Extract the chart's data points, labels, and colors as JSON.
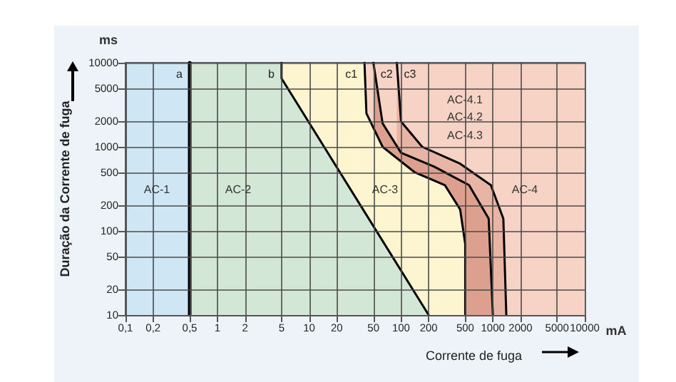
{
  "chart_data": {
    "type": "line",
    "xlabel": "Corrente de fuga",
    "ylabel": "Duração da Corrente de fuga",
    "log": "xy",
    "grid": true,
    "legend": false,
    "marker": "none",
    "xlim": [
      0.1,
      10000
    ],
    "xticks": [
      {
        "value": 0.1,
        "label": "0,1"
      },
      {
        "value": 0.2,
        "label": "0,2"
      },
      {
        "value": 0.5,
        "label": "0,5"
      },
      1,
      2,
      5,
      10,
      20,
      50,
      100,
      200,
      500,
      1000,
      2000,
      5000,
      10000
    ],
    "ylim": [
      10,
      10000
    ],
    "yticks": [
      10,
      20,
      50,
      100,
      200,
      500,
      1000,
      2000,
      5000,
      10000
    ],
    "bands": [
      {
        "axis": "x",
        "from": 0.1,
        "to": 0.5,
        "color": "#cfe6f4"
      },
      {
        "axis": "x",
        "from": 0.5,
        "to": 5,
        "color": "#d3e7d6"
      },
      {
        "axis": "x",
        "from": 5,
        "to": 40,
        "color": "#fdf5cf"
      },
      {
        "axis": "x",
        "from": 40,
        "to": 10000,
        "color": "#f7d3c5"
      }
    ],
    "series": [
      {
        "name": "c3",
        "type": "area",
        "color": "#e8b4a4",
        "x": [
          90,
          100,
          170,
          440,
          950,
          1300,
          1400
        ],
        "values": [
          10000,
          2000,
          1000,
          630,
          350,
          140,
          10
        ]
      },
      {
        "name": "c2",
        "type": "area",
        "color": "#dea08e",
        "x": [
          50,
          63,
          100,
          230,
          550,
          900,
          1000
        ],
        "values": [
          10000,
          1900,
          850,
          580,
          350,
          140,
          10
        ]
      },
      {
        "name": "c1",
        "type": "area",
        "color": "#fdf5cf",
        "x": [
          40,
          42,
          63,
          140,
          300,
          440,
          500,
          500
        ],
        "values": [
          10000,
          2500,
          1000,
          500,
          350,
          180,
          70,
          10
        ]
      },
      {
        "name": "b",
        "type": "area",
        "color": "#d3e7d6",
        "x": [
          5,
          5,
          200
        ],
        "values": [
          10000,
          6500,
          10
        ]
      },
      {
        "name": "a",
        "type": "line",
        "color": "#000000",
        "x": [
          0.5,
          0.5
        ],
        "values": [
          10000,
          10
        ]
      }
    ],
    "annotations": [
      "ms",
      "mA",
      "AC-1",
      "AC-2",
      "AC-3",
      "AC-4",
      "AC-4.1",
      "AC-4.2",
      "AC-4.3"
    ]
  }
}
